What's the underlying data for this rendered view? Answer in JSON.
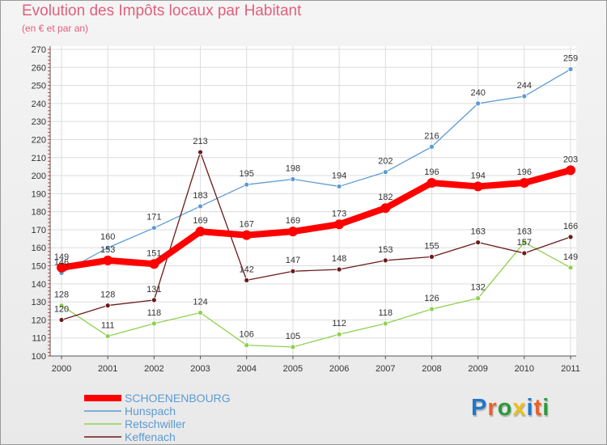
{
  "title": "Evolution des Impôts locaux par Habitant",
  "subtitle": "(en € et par an)",
  "logo": {
    "text": "Proxiti",
    "colors": [
      "#1f77c9",
      "#e8612c",
      "#2b9b3a",
      "#e8c21a",
      "#1f77c9",
      "#e8612c",
      "#2b9b3a"
    ]
  },
  "chart_data": {
    "type": "line",
    "title": "Evolution des Impôts locaux par Habitant",
    "subtitle": "(en € et par an)",
    "xlabel": "",
    "ylabel": "",
    "x": [
      "2000",
      "2001",
      "2002",
      "2003",
      "2004",
      "2005",
      "2006",
      "2007",
      "2008",
      "2009",
      "2010",
      "2011"
    ],
    "ylim": [
      100,
      270
    ],
    "yticks": [
      100,
      110,
      120,
      130,
      140,
      150,
      160,
      170,
      180,
      190,
      200,
      210,
      220,
      230,
      240,
      250,
      260,
      270
    ],
    "grid": true,
    "legend_position": "bottom-left",
    "series": [
      {
        "name": "SCHOENENBOURG",
        "color": "#ff0000",
        "values": [
          149,
          153,
          151,
          169,
          167,
          169,
          173,
          182,
          196,
          194,
          196,
          203
        ]
      },
      {
        "name": "Hunspach",
        "color": "#5b9bd5",
        "values": [
          146,
          160,
          171,
          183,
          195,
          198,
          194,
          202,
          216,
          240,
          244,
          259
        ]
      },
      {
        "name": "Retschwiller",
        "color": "#8fd14f",
        "values": [
          128,
          111,
          118,
          124,
          106,
          105,
          112,
          118,
          126,
          132,
          163,
          149
        ]
      },
      {
        "name": "Keffenach",
        "color": "#6b1a1a",
        "values": [
          120,
          128,
          131,
          213,
          142,
          147,
          148,
          153,
          155,
          163,
          157,
          166
        ]
      }
    ]
  }
}
